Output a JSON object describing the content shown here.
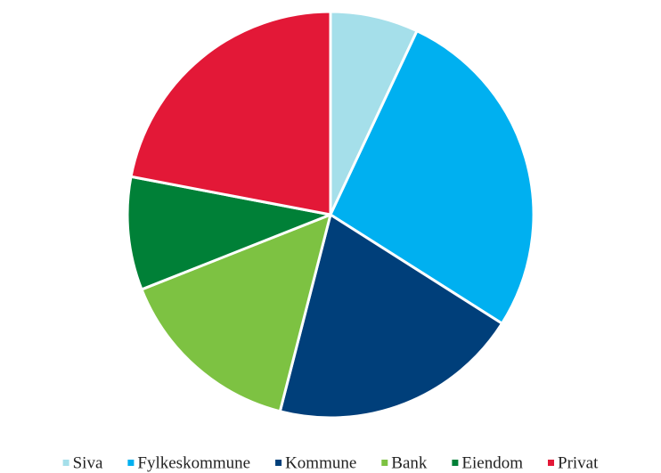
{
  "chart_data": {
    "type": "pie",
    "categories": [
      "Siva",
      "Fylkeskommune",
      "Kommune",
      "Bank",
      "Eiendom",
      "Privat"
    ],
    "values": [
      7,
      27,
      20,
      15,
      9,
      22
    ],
    "colors": [
      "#a5dfea",
      "#00b0f0",
      "#003f7a",
      "#7dc242",
      "#008037",
      "#e31837"
    ],
    "legend": "bottom"
  }
}
